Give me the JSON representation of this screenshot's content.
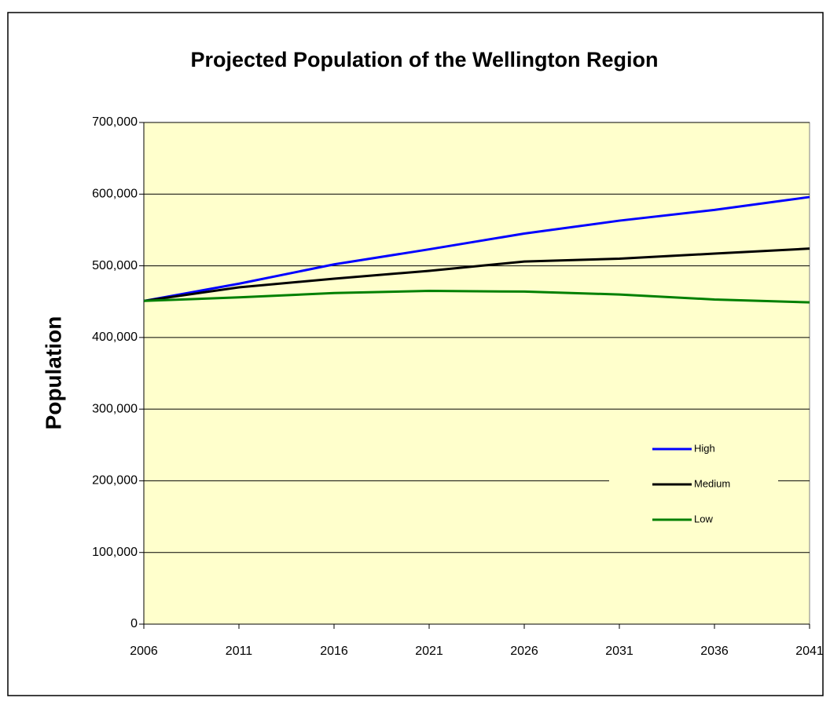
{
  "chart_data": {
    "type": "line",
    "title": "Projected Population of the Wellington Region",
    "y_label": "Population",
    "x": [
      2006,
      2011,
      2016,
      2021,
      2026,
      2031,
      2036,
      2041
    ],
    "xlim": [
      2006,
      2041
    ],
    "xticks": [
      2006,
      2011,
      2016,
      2021,
      2026,
      2031,
      2036,
      2041
    ],
    "ylim": [
      0,
      700000
    ],
    "yticks": [
      0,
      {
        "value": 100000,
        "label": "100,000"
      },
      {
        "value": 200000,
        "label": "200,000"
      },
      {
        "value": 300000,
        "label": "300,000"
      },
      {
        "value": 400000,
        "label": "400,000"
      },
      {
        "value": 500000,
        "label": "500,000"
      },
      {
        "value": 600000,
        "label": "600,000"
      },
      {
        "value": 700000,
        "label": "700,000"
      }
    ],
    "grid": true,
    "legend": "right",
    "background": "#ffffcc",
    "series": [
      {
        "name": "High",
        "color": "#0000ff",
        "values": [
          451000,
          475000,
          502000,
          523000,
          545000,
          563000,
          578000,
          596000
        ]
      },
      {
        "name": "Medium",
        "color": "#000000",
        "values": [
          451000,
          470000,
          482000,
          493000,
          506000,
          510000,
          517000,
          524000
        ]
      },
      {
        "name": "Low",
        "color": "#008000",
        "values": [
          451000,
          456000,
          462000,
          465000,
          464000,
          460000,
          453000,
          449000
        ]
      }
    ]
  }
}
